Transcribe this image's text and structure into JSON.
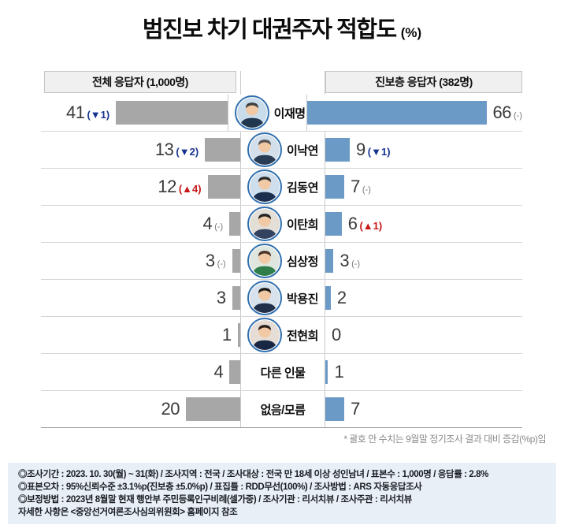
{
  "title": {
    "main": "범진보 차기 대권주자 적합도",
    "unit": "(%)"
  },
  "headers": {
    "left": "전체 응답자 (1,000명)",
    "right": "진보층 응답자 (382명)"
  },
  "rows": [
    {
      "name": "이재명",
      "photo": true,
      "avatar": {
        "bg": "#c9dcec",
        "shirt": "#21364f",
        "hair": "#3f3f3f",
        "skin": "#f1c9a5"
      },
      "left": {
        "value": 41,
        "change": "▼1",
        "dir": "down"
      },
      "right": {
        "value": 66,
        "change": "-",
        "dir": "flat"
      }
    },
    {
      "name": "이낙연",
      "photo": true,
      "avatar": {
        "bg": "#d3e0ec",
        "shirt": "#2a3c55",
        "hair": "#555555",
        "skin": "#f1c9a5"
      },
      "left": {
        "value": 13,
        "change": "▼2",
        "dir": "down"
      },
      "right": {
        "value": 9,
        "change": "▼1",
        "dir": "down"
      }
    },
    {
      "name": "김동연",
      "photo": true,
      "avatar": {
        "bg": "#cfdeec",
        "shirt": "#1c2f4e",
        "hair": "#2a2a2a",
        "skin": "#f1c9a5"
      },
      "left": {
        "value": 12,
        "change": "▲4",
        "dir": "up"
      },
      "right": {
        "value": 7,
        "change": "-",
        "dir": "flat"
      }
    },
    {
      "name": "이탄희",
      "photo": true,
      "avatar": {
        "bg": "#e3ded6",
        "shirt": "#33435f",
        "hair": "#222222",
        "skin": "#f1c9a5"
      },
      "left": {
        "value": 4,
        "change": "-",
        "dir": "flat"
      },
      "right": {
        "value": 6,
        "change": "▲1",
        "dir": "up"
      }
    },
    {
      "name": "심상정",
      "photo": true,
      "avatar": {
        "bg": "#dfe6df",
        "shirt": "#2f7d4b",
        "hair": "#4a3328",
        "skin": "#f1c9a5"
      },
      "left": {
        "value": 3,
        "change": "-",
        "dir": "flat"
      },
      "right": {
        "value": 3,
        "change": "-",
        "dir": "flat"
      }
    },
    {
      "name": "박용진",
      "photo": true,
      "avatar": {
        "bg": "#d8e2ec",
        "shirt": "#222f49",
        "hair": "#1a1a1a",
        "skin": "#f1c9a5"
      },
      "left": {
        "value": 3
      },
      "right": {
        "value": 2
      }
    },
    {
      "name": "전현희",
      "photo": true,
      "avatar": {
        "bg": "#e6ded6",
        "shirt": "#182743",
        "hair": "#2e211b",
        "skin": "#f1c9a5"
      },
      "left": {
        "value": 1
      },
      "right": {
        "value": 0
      }
    },
    {
      "name": "다른 인물",
      "photo": false,
      "left": {
        "value": 4
      },
      "right": {
        "value": 1
      }
    },
    {
      "name": "없음/모름",
      "photo": false,
      "left": {
        "value": 20
      },
      "right": {
        "value": 7
      }
    }
  ],
  "footnote": "* 괄호 안 수치는 9월말 정기조사 결과 대비 증감(%p)임",
  "footer": {
    "lines": [
      "◎조사기간 : 2023. 10. 30(월) ~ 31(화) / 조사지역 : 전국 / 조사대상 : 전국 만 18세 이상 성인남녀 / 표본수 : 1,000명 / 응답률 : 2.8%",
      "◎표본오차 : 95%신뢰수준 ±3.1%p(진보층 ±5.0%p) / 표집틀 : RDD무선(100%) / 조사방법 : ARS 자동응답조사",
      "◎보정방법 : 2023년 8월말 현재 행안부 주민등록인구비례(셀가중) / 조사기관 : 리서치뷰 / 조사주관 : 리서치뷰",
      "자세한 사항은 <중앙선거여론조사심의위원회> 홈페이지 참조"
    ]
  },
  "colors": {
    "bar_left": "#a7a7a7",
    "bar_right": "#6b9ac7",
    "change_up": "#c81717",
    "change_down": "#17338f",
    "change_flat": "#787878",
    "photo_ring": "#2f6fae",
    "line_vertical": "#c9c9c9",
    "footer_bg": "#e9eff7"
  },
  "chart_data": {
    "type": "bar",
    "title": "범진보 차기 대권주자 적합도 (%)",
    "categories": [
      "이재명",
      "이낙연",
      "김동연",
      "이탄희",
      "심상정",
      "박용진",
      "전현희",
      "다른 인물",
      "없음/모름"
    ],
    "series": [
      {
        "name": "전체 응답자 (1,000명)",
        "values": [
          41,
          13,
          12,
          4,
          3,
          3,
          1,
          4,
          20
        ],
        "changes": [
          "▼1",
          "▼2",
          "▲4",
          "-",
          "-",
          null,
          null,
          null,
          null
        ]
      },
      {
        "name": "진보층 응답자 (382명)",
        "values": [
          66,
          9,
          7,
          6,
          3,
          2,
          0,
          1,
          7
        ],
        "changes": [
          "-",
          "▼1",
          "-",
          "▲1",
          "-",
          null,
          null,
          null,
          null
        ]
      }
    ],
    "orientation": "horizontal-mirrored",
    "xlim": [
      0,
      70
    ],
    "note": "* 괄호 안 수치는 9월말 정기조사 결과 대비 증감(%p)임"
  }
}
